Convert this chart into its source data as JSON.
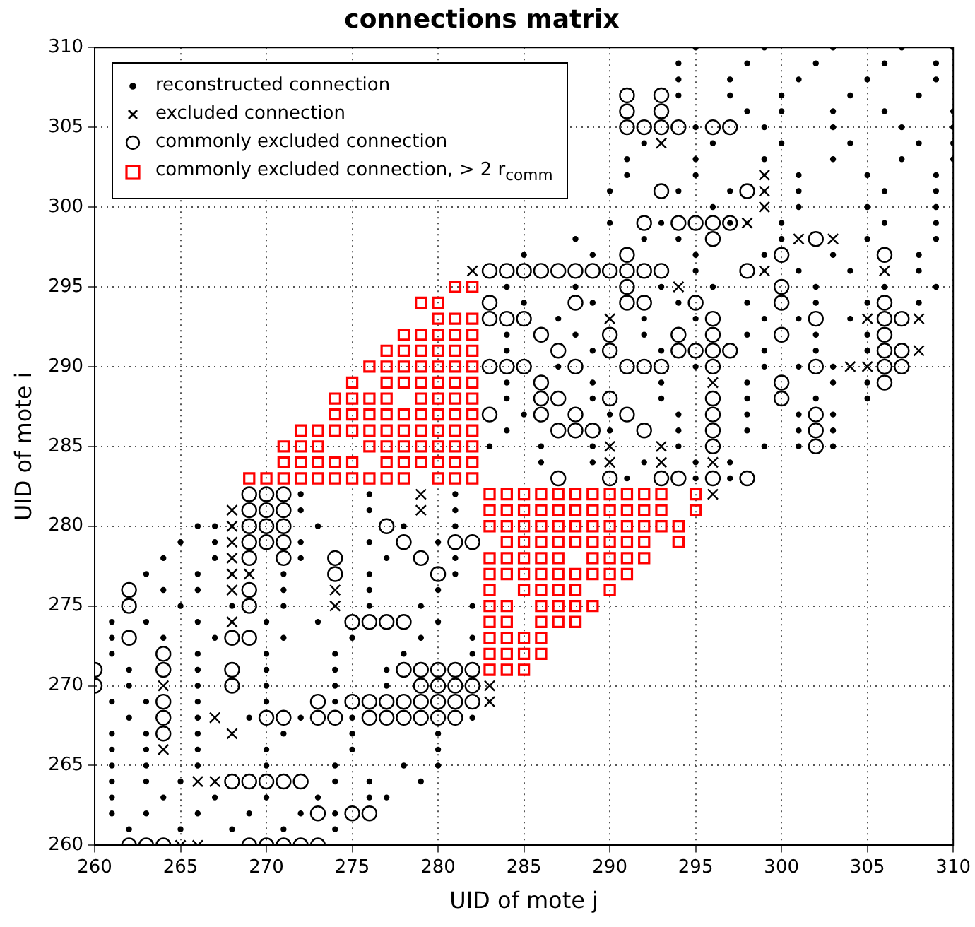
{
  "chart_data": {
    "type": "scatter",
    "title": "connections matrix",
    "xlabel": "UID of mote j",
    "ylabel": "UID of mote i",
    "xlim": [
      260,
      310
    ],
    "ylim": [
      260,
      310
    ],
    "xticks": [
      260,
      265,
      270,
      275,
      280,
      285,
      290,
      295,
      300,
      305,
      310
    ],
    "yticks": [
      260,
      265,
      270,
      275,
      280,
      285,
      290,
      295,
      300,
      305,
      310
    ],
    "grid": true,
    "legend": "top left",
    "series": [
      {
        "name": "reconstructed connection",
        "color": "#000000",
        "marker": "circle",
        "x": [
          262,
          265,
          268,
          271,
          274,
          261,
          263,
          266,
          269,
          272,
          274,
          261,
          264,
          267,
          270,
          273,
          276,
          277,
          261,
          263,
          265,
          274,
          276,
          279,
          261,
          263,
          266,
          270,
          274,
          278,
          280,
          261,
          263,
          266,
          270,
          275,
          280,
          261,
          263,
          266,
          271,
          275,
          280,
          262,
          266,
          269,
          272,
          275,
          282,
          261,
          263,
          266,
          270,
          274,
          262,
          266,
          270,
          274,
          277,
          262,
          266,
          270,
          274,
          277,
          261,
          266,
          270,
          274,
          278,
          282,
          261,
          264,
          267,
          271,
          275,
          279,
          282,
          261,
          263,
          266,
          270,
          273,
          280,
          265,
          268,
          271,
          276,
          279,
          282,
          264,
          266,
          271,
          276,
          280,
          263,
          266,
          271,
          276,
          281,
          264,
          267,
          272,
          277,
          281,
          265,
          267,
          272,
          276,
          280,
          266,
          267,
          273,
          278,
          281,
          272,
          276,
          281,
          272,
          276,
          281,
          291,
          295,
          297,
          286,
          289,
          292,
          295,
          297,
          283,
          286,
          289,
          294,
          299,
          301,
          303,
          284,
          290,
          294,
          298,
          301,
          303,
          285,
          290,
          294,
          298,
          301,
          303,
          284,
          289,
          293,
          298,
          302,
          305,
          284,
          289,
          293,
          298,
          303,
          305,
          287,
          295,
          299,
          301,
          303,
          284,
          289,
          293,
          299,
          302,
          305,
          284,
          288,
          292,
          298,
          302,
          305,
          287,
          292,
          295,
          299,
          301,
          304,
          285,
          289,
          294,
          298,
          302,
          305,
          308,
          284,
          288,
          293,
          296,
          302,
          306,
          309,
          295,
          301,
          304,
          308,
          285,
          289,
          295,
          299,
          303,
          308,
          288,
          292,
          294,
          300,
          305,
          309,
          290,
          293,
          297,
          300,
          306,
          309,
          296,
          301,
          305,
          309,
          290,
          294,
          297,
          301,
          306,
          309,
          291,
          295,
          301,
          305,
          309,
          291,
          295,
          299,
          303,
          307,
          310,
          292,
          296,
          300,
          304,
          308,
          310,
          295,
          299,
          303,
          307,
          310,
          298,
          300,
          303,
          306,
          310,
          294,
          297,
          300,
          304,
          308,
          294,
          297,
          301,
          305,
          309,
          294,
          298,
          302,
          306,
          309,
          295,
          299,
          303,
          307,
          310
        ],
        "values": [
          261,
          261,
          261,
          261,
          261,
          262,
          262,
          262,
          262,
          262,
          262,
          263,
          263,
          263,
          263,
          263,
          263,
          263,
          264,
          264,
          264,
          264,
          264,
          264,
          265,
          265,
          265,
          265,
          265,
          265,
          265,
          266,
          266,
          266,
          266,
          266,
          266,
          267,
          267,
          267,
          267,
          267,
          267,
          268,
          268,
          268,
          268,
          268,
          268,
          269,
          269,
          269,
          269,
          269,
          270,
          270,
          270,
          270,
          270,
          271,
          271,
          271,
          271,
          271,
          272,
          272,
          272,
          272,
          272,
          272,
          273,
          273,
          273,
          273,
          273,
          273,
          273,
          274,
          274,
          274,
          274,
          274,
          274,
          275,
          275,
          275,
          275,
          275,
          275,
          276,
          276,
          276,
          276,
          276,
          277,
          277,
          277,
          277,
          277,
          278,
          278,
          278,
          278,
          278,
          279,
          279,
          279,
          279,
          279,
          280,
          280,
          280,
          280,
          280,
          281,
          281,
          281,
          282,
          282,
          282,
          283,
          283,
          283,
          284,
          284,
          284,
          284,
          284,
          285,
          285,
          285,
          285,
          285,
          285,
          285,
          286,
          286,
          286,
          286,
          286,
          286,
          287,
          287,
          287,
          287,
          287,
          287,
          288,
          288,
          288,
          288,
          288,
          288,
          289,
          289,
          289,
          289,
          289,
          289,
          290,
          290,
          290,
          290,
          290,
          291,
          291,
          291,
          291,
          291,
          291,
          292,
          292,
          292,
          292,
          292,
          292,
          293,
          293,
          293,
          293,
          293,
          293,
          294,
          294,
          294,
          294,
          294,
          294,
          294,
          295,
          295,
          295,
          295,
          295,
          295,
          295,
          296,
          296,
          296,
          296,
          297,
          297,
          297,
          297,
          297,
          297,
          298,
          298,
          298,
          298,
          298,
          298,
          299,
          299,
          299,
          299,
          299,
          299,
          300,
          300,
          300,
          300,
          301,
          301,
          301,
          301,
          301,
          301,
          302,
          302,
          302,
          302,
          302,
          303,
          303,
          303,
          303,
          303,
          303,
          304,
          304,
          304,
          304,
          304,
          304,
          305,
          305,
          305,
          305,
          305,
          306,
          306,
          306,
          306,
          306,
          307,
          307,
          307,
          307,
          307,
          308,
          308,
          308,
          308,
          308,
          309,
          309,
          309,
          309,
          309,
          310,
          310,
          310,
          310,
          310
        ]
      },
      {
        "name": "excluded connection",
        "color": "#000000",
        "marker": "cross",
        "x": [
          268,
          268,
          268,
          268,
          268,
          268,
          269,
          268,
          264,
          264,
          267,
          268,
          266,
          267,
          265,
          266,
          279,
          279,
          274,
          274,
          283,
          283,
          282,
          299,
          306,
          294,
          290,
          305,
          308,
          308,
          304,
          305,
          296,
          290,
          293,
          290,
          293,
          296,
          296,
          301,
          303,
          298,
          299,
          299,
          299,
          293
        ],
        "values": [
          281,
          280,
          279,
          278,
          277,
          276,
          277,
          274,
          270,
          266,
          268,
          267,
          264,
          264,
          260,
          260,
          282,
          281,
          276,
          275,
          270,
          269,
          296,
          296,
          296,
          295,
          293,
          293,
          293,
          291,
          290,
          290,
          289,
          285,
          285,
          284,
          284,
          284,
          282,
          298,
          298,
          299,
          300,
          301,
          302,
          304
        ]
      },
      {
        "name": "commonly excluded connection",
        "color": "#000000",
        "marker": "circle",
        "x": [
          269,
          270,
          271,
          269,
          270,
          271,
          269,
          270,
          271,
          277,
          269,
          270,
          271,
          278,
          281,
          282,
          269,
          271,
          274,
          279,
          274,
          280,
          262,
          269,
          262,
          269,
          275,
          276,
          277,
          278,
          262,
          268,
          269,
          264,
          260,
          264,
          268,
          278,
          279,
          280,
          281,
          282,
          260,
          268,
          279,
          280,
          281,
          282,
          264,
          273,
          275,
          276,
          277,
          278,
          279,
          280,
          281,
          282,
          264,
          270,
          271,
          273,
          274,
          276,
          277,
          278,
          279,
          280,
          281,
          264,
          268,
          269,
          270,
          271,
          272,
          273,
          275,
          276,
          262,
          263,
          264,
          269,
          270,
          271,
          272,
          273,
          283,
          284,
          285,
          286,
          287,
          288,
          289,
          290,
          291,
          292,
          293,
          298,
          291,
          300,
          283,
          288,
          291,
          292,
          295,
          300,
          306,
          283,
          284,
          285,
          296,
          302,
          306,
          307,
          286,
          290,
          294,
          296,
          300,
          306,
          287,
          290,
          294,
          295,
          296,
          297,
          306,
          307,
          283,
          284,
          285,
          288,
          291,
          292,
          293,
          296,
          302,
          306,
          307,
          286,
          300,
          306,
          286,
          287,
          290,
          296,
          300,
          283,
          286,
          288,
          291,
          296,
          302,
          287,
          288,
          289,
          292,
          296,
          302,
          296,
          302,
          287,
          290,
          293,
          294,
          296,
          298,
          291,
          300,
          306,
          296,
          302,
          292,
          294,
          295,
          296,
          297,
          293,
          298,
          291,
          292,
          293,
          294,
          296,
          297,
          291,
          293,
          291,
          293
        ],
        "values": [
          282,
          282,
          282,
          281,
          281,
          281,
          280,
          280,
          280,
          280,
          279,
          279,
          279,
          279,
          279,
          279,
          278,
          278,
          278,
          278,
          277,
          277,
          276,
          276,
          275,
          275,
          274,
          274,
          274,
          274,
          273,
          273,
          273,
          272,
          271,
          271,
          271,
          271,
          271,
          271,
          271,
          271,
          270,
          270,
          270,
          270,
          270,
          270,
          269,
          269,
          269,
          269,
          269,
          269,
          269,
          269,
          269,
          269,
          268,
          268,
          268,
          268,
          268,
          268,
          268,
          268,
          268,
          268,
          268,
          267,
          264,
          264,
          264,
          264,
          264,
          262,
          262,
          262,
          260,
          260,
          260,
          260,
          260,
          260,
          260,
          260,
          296,
          296,
          296,
          296,
          296,
          296,
          296,
          296,
          296,
          296,
          296,
          296,
          295,
          295,
          294,
          294,
          294,
          294,
          294,
          294,
          294,
          293,
          293,
          293,
          293,
          293,
          293,
          293,
          292,
          292,
          292,
          292,
          292,
          292,
          291,
          291,
          291,
          291,
          291,
          291,
          291,
          291,
          290,
          290,
          290,
          290,
          290,
          290,
          290,
          290,
          290,
          290,
          290,
          289,
          289,
          289,
          288,
          288,
          288,
          288,
          288,
          287,
          287,
          287,
          287,
          287,
          287,
          286,
          286,
          286,
          286,
          286,
          286,
          285,
          285,
          283,
          283,
          283,
          283,
          283,
          283,
          297,
          297,
          297,
          298,
          298,
          299,
          299,
          299,
          299,
          299,
          301,
          301,
          305,
          305,
          305,
          305,
          305,
          305,
          306,
          306,
          307,
          307
        ]
      },
      {
        "name": "commonly excluded connection, > 2 r$_{comm}$",
        "color": "#ff0000",
        "marker": "square",
        "x": [
          281,
          282,
          279,
          280,
          280,
          281,
          282,
          278,
          279,
          280,
          281,
          282,
          277,
          278,
          279,
          280,
          281,
          282,
          276,
          277,
          278,
          279,
          280,
          281,
          282,
          275,
          277,
          278,
          279,
          280,
          281,
          282,
          274,
          275,
          276,
          277,
          279,
          280,
          281,
          282,
          274,
          275,
          276,
          277,
          278,
          279,
          280,
          281,
          282,
          272,
          273,
          274,
          275,
          276,
          277,
          278,
          279,
          280,
          281,
          282,
          271,
          272,
          273,
          276,
          277,
          278,
          279,
          280,
          281,
          282,
          271,
          272,
          273,
          274,
          275,
          277,
          278,
          279,
          280,
          281,
          282,
          269,
          270,
          271,
          272,
          273,
          274,
          275,
          276,
          277,
          278,
          280,
          281,
          282,
          283,
          284,
          285,
          286,
          287,
          288,
          289,
          290,
          291,
          292,
          293,
          295,
          283,
          284,
          285,
          286,
          287,
          288,
          289,
          290,
          291,
          292,
          293,
          295,
          283,
          284,
          285,
          286,
          287,
          288,
          289,
          290,
          291,
          292,
          293,
          294,
          284,
          285,
          286,
          287,
          288,
          289,
          290,
          291,
          292,
          294,
          283,
          284,
          285,
          286,
          287,
          289,
          290,
          291,
          292,
          283,
          284,
          285,
          286,
          287,
          288,
          289,
          290,
          291,
          283,
          285,
          286,
          287,
          288,
          290,
          283,
          284,
          286,
          287,
          288,
          289,
          283,
          284,
          286,
          287,
          288,
          283,
          284,
          285,
          286,
          283,
          284,
          285,
          286,
          283,
          284,
          285
        ],
        "values": [
          295,
          295,
          294,
          294,
          293,
          293,
          293,
          292,
          292,
          292,
          292,
          292,
          291,
          291,
          291,
          291,
          291,
          291,
          290,
          290,
          290,
          290,
          290,
          290,
          290,
          289,
          289,
          289,
          289,
          289,
          289,
          289,
          288,
          288,
          288,
          288,
          288,
          288,
          288,
          288,
          287,
          287,
          287,
          287,
          287,
          287,
          287,
          287,
          287,
          286,
          286,
          286,
          286,
          286,
          286,
          286,
          286,
          286,
          286,
          286,
          285,
          285,
          285,
          285,
          285,
          285,
          285,
          285,
          285,
          285,
          284,
          284,
          284,
          284,
          284,
          284,
          284,
          284,
          284,
          284,
          284,
          283,
          283,
          283,
          283,
          283,
          283,
          283,
          283,
          283,
          283,
          283,
          283,
          283,
          282,
          282,
          282,
          282,
          282,
          282,
          282,
          282,
          282,
          282,
          282,
          282,
          281,
          281,
          281,
          281,
          281,
          281,
          281,
          281,
          281,
          281,
          281,
          281,
          280,
          280,
          280,
          280,
          280,
          280,
          280,
          280,
          280,
          280,
          280,
          280,
          279,
          279,
          279,
          279,
          279,
          279,
          279,
          279,
          279,
          279,
          278,
          278,
          278,
          278,
          278,
          278,
          278,
          278,
          278,
          277,
          277,
          277,
          277,
          277,
          277,
          277,
          277,
          277,
          276,
          276,
          276,
          276,
          276,
          276,
          275,
          275,
          275,
          275,
          275,
          275,
          274,
          274,
          274,
          274,
          274,
          273,
          273,
          273,
          273,
          272,
          272,
          272,
          272,
          271,
          271,
          271
        ]
      }
    ]
  }
}
